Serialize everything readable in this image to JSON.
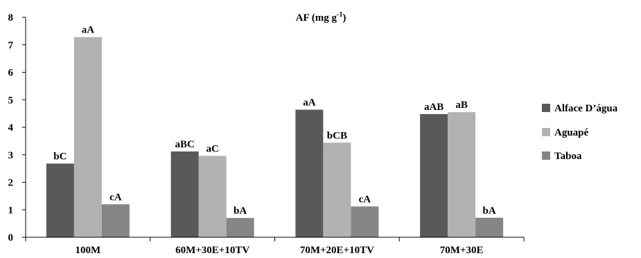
{
  "chart_data": {
    "type": "bar",
    "title": "AF (mg g",
    "title_sup": "-1",
    "title_end": ")",
    "xlabel": "",
    "ylabel": "",
    "ylim": [
      0,
      8
    ],
    "yticks": [
      0,
      1,
      2,
      3,
      4,
      5,
      6,
      7,
      8
    ],
    "grid": false,
    "legend_position": "right",
    "categories": [
      "100M",
      "60M+30E+10TV",
      "70M+20E+10TV",
      "70M+30E"
    ],
    "series": [
      {
        "name": "Alface D’água",
        "color": "#595959",
        "values": [
          2.68,
          3.12,
          4.64,
          4.48
        ],
        "labels": [
          "bC",
          "aBC",
          "aA",
          "aAB"
        ]
      },
      {
        "name": "Aguapé",
        "color": "#b2b2b2",
        "values": [
          7.28,
          2.96,
          3.44,
          4.55
        ],
        "labels": [
          "aA",
          "aC",
          "bCB",
          "aB"
        ]
      },
      {
        "name": "Taboa",
        "color": "#858585",
        "values": [
          1.2,
          0.7,
          1.12,
          0.71
        ],
        "labels": [
          "cA",
          "bA",
          "cA",
          "bA"
        ]
      }
    ]
  }
}
